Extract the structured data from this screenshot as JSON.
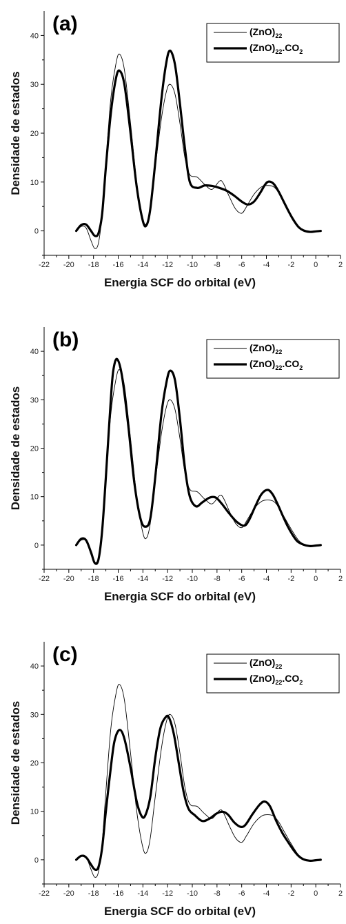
{
  "chart_data": [
    {
      "type": "line",
      "panel_label": "(a)",
      "xlabel": "Energia SCF do orbital (eV)",
      "ylabel": "Densidade de estados",
      "xlim": [
        -22,
        2
      ],
      "ylim": [
        -5,
        45
      ],
      "xticks": [
        -22,
        -20,
        -18,
        -16,
        -14,
        -12,
        -10,
        -8,
        -6,
        -4,
        -2,
        0,
        2
      ],
      "yticks": [
        0,
        10,
        20,
        30,
        40
      ],
      "legend": {
        "position": "top-right"
      },
      "series": [
        {
          "name": "(ZnO)22",
          "name_main": "(ZnO)",
          "name_sub": "22",
          "name_suffix": "",
          "style": "thin",
          "x": [
            -19.4,
            -19.0,
            -18.6,
            -18.2,
            -17.9,
            -17.6,
            -17.3,
            -17.0,
            -16.6,
            -16.2,
            -15.9,
            -15.5,
            -15.0,
            -14.5,
            -14.0,
            -13.7,
            -13.4,
            -13.0,
            -12.5,
            -12.1,
            -11.8,
            -11.4,
            -11.0,
            -10.6,
            -10.2,
            -9.6,
            -9.0,
            -8.4,
            -7.8,
            -7.5,
            -7.0,
            -6.5,
            -6.0,
            -5.6,
            -5.0,
            -4.4,
            -3.9,
            -3.4,
            -3.0,
            -2.6,
            -2.2,
            -1.8,
            -1.4,
            -1.0,
            -0.5,
            0.0,
            0.4
          ],
          "y": [
            0,
            0.9,
            0.6,
            -2.0,
            -3.6,
            -2.5,
            3.5,
            14,
            27,
            34,
            36.2,
            33,
            22,
            10,
            2.5,
            1.5,
            4.5,
            13,
            23,
            28.5,
            30,
            28,
            22,
            15,
            11.5,
            11,
            9.5,
            8.5,
            10.2,
            9.8,
            7,
            4.5,
            3.6,
            5.0,
            7.5,
            9.0,
            9.3,
            9.0,
            7.8,
            6.0,
            4.2,
            2.5,
            1.0,
            0.2,
            -0.2,
            -0.1,
            0
          ]
        },
        {
          "name": "(ZnO)22.CO2",
          "name_main": "(ZnO)",
          "name_sub": "22",
          "name_suffix": ".CO",
          "name_suffix_sub": "2",
          "style": "thick",
          "x": [
            -19.4,
            -19.0,
            -18.6,
            -18.2,
            -17.9,
            -17.6,
            -17.3,
            -17.0,
            -16.6,
            -16.2,
            -15.9,
            -15.5,
            -15.0,
            -14.5,
            -14.0,
            -13.7,
            -13.4,
            -13.0,
            -12.5,
            -12.1,
            -11.8,
            -11.4,
            -11.0,
            -10.6,
            -10.2,
            -9.6,
            -9.0,
            -8.4,
            -7.8,
            -7.2,
            -6.6,
            -6.0,
            -5.5,
            -5.0,
            -4.5,
            -4.1,
            -3.8,
            -3.4,
            -3.0,
            -2.6,
            -2.2,
            -1.8,
            -1.4,
            -1.0,
            -0.5,
            0.0,
            0.4
          ],
          "y": [
            0,
            1.2,
            1.3,
            0,
            -1.0,
            -0.5,
            3.5,
            13,
            24,
            31,
            32.8,
            30,
            20,
            9,
            2.0,
            1.2,
            4.5,
            14,
            27,
            34.5,
            36.9,
            34,
            26,
            17,
            10,
            8.8,
            9.3,
            9.2,
            8.8,
            8.2,
            7.2,
            6.0,
            5.4,
            6.0,
            7.8,
            9.5,
            10.1,
            9.6,
            8.0,
            6.0,
            4.0,
            2.2,
            0.8,
            0.1,
            -0.2,
            -0.1,
            0
          ]
        }
      ]
    },
    {
      "type": "line",
      "panel_label": "(b)",
      "xlabel": "Energia SCF do orbital (eV)",
      "ylabel": "Densidade de estados",
      "xlim": [
        -22,
        2
      ],
      "ylim": [
        -5,
        45
      ],
      "xticks": [
        -22,
        -20,
        -18,
        -16,
        -14,
        -12,
        -10,
        -8,
        -6,
        -4,
        -2,
        0,
        2
      ],
      "yticks": [
        0,
        10,
        20,
        30,
        40
      ],
      "legend": {
        "position": "top-right"
      },
      "series": [
        {
          "name": "(ZnO)22",
          "name_main": "(ZnO)",
          "name_sub": "22",
          "name_suffix": "",
          "style": "thin",
          "x": [
            -19.4,
            -19.0,
            -18.6,
            -18.2,
            -17.9,
            -17.6,
            -17.3,
            -17.0,
            -16.6,
            -16.2,
            -15.9,
            -15.5,
            -15.0,
            -14.5,
            -14.0,
            -13.7,
            -13.4,
            -13.0,
            -12.5,
            -12.1,
            -11.8,
            -11.4,
            -11.0,
            -10.6,
            -10.2,
            -9.6,
            -9.0,
            -8.4,
            -7.8,
            -7.5,
            -7.0,
            -6.5,
            -6.0,
            -5.6,
            -5.0,
            -4.4,
            -3.9,
            -3.4,
            -3.0,
            -2.6,
            -2.2,
            -1.8,
            -1.4,
            -1.0,
            -0.5,
            0.0,
            0.4
          ],
          "y": [
            0,
            1.0,
            0.8,
            -2.0,
            -3.6,
            -2.5,
            3.5,
            14,
            27,
            34,
            36.2,
            33,
            22,
            10,
            2.5,
            1.5,
            4.5,
            13,
            23,
            28.5,
            30,
            28,
            22,
            15,
            11.5,
            11,
            9.5,
            8.5,
            10.2,
            9.8,
            7,
            4.5,
            3.6,
            5.0,
            7.5,
            9.0,
            9.3,
            9.0,
            7.8,
            6.0,
            4.2,
            2.5,
            1.0,
            0.2,
            -0.2,
            -0.1,
            0
          ]
        },
        {
          "name": "(ZnO)22.CO2",
          "name_main": "(ZnO)",
          "name_sub": "22",
          "name_suffix": ".CO",
          "name_suffix_sub": "2",
          "style": "thick",
          "x": [
            -19.4,
            -19.0,
            -18.6,
            -18.2,
            -17.9,
            -17.6,
            -17.3,
            -17.0,
            -16.6,
            -16.4,
            -16.1,
            -15.7,
            -15.2,
            -14.7,
            -14.2,
            -13.8,
            -13.4,
            -13.0,
            -12.5,
            -12.1,
            -11.8,
            -11.4,
            -11.0,
            -10.6,
            -10.2,
            -9.7,
            -9.2,
            -8.6,
            -8.1,
            -7.6,
            -7.0,
            -6.4,
            -5.8,
            -5.4,
            -4.9,
            -4.4,
            -3.9,
            -3.5,
            -3.1,
            -2.7,
            -2.3,
            -1.9,
            -1.5,
            -1.0,
            -0.5,
            0.0,
            0.4
          ],
          "y": [
            0,
            1.3,
            1.0,
            -1.5,
            -3.7,
            -3.0,
            3.0,
            14,
            30,
            36,
            38.4,
            35,
            25,
            13,
            5.5,
            3.8,
            5.5,
            14,
            27,
            33.5,
            36,
            34,
            26,
            16,
            10,
            8.0,
            8.8,
            9.8,
            9.8,
            8.5,
            6.5,
            4.8,
            4.0,
            5.2,
            8.0,
            10.5,
            11.4,
            10.5,
            8.5,
            6.2,
            4.0,
            2.2,
            0.8,
            0.1,
            -0.2,
            -0.1,
            0
          ]
        }
      ]
    },
    {
      "type": "line",
      "panel_label": "(c)",
      "xlabel": "Energia SCF do orbital (eV)",
      "ylabel": "Densidade de estados",
      "xlim": [
        -22,
        2
      ],
      "ylim": [
        -5,
        45
      ],
      "xticks": [
        -22,
        -20,
        -18,
        -16,
        -14,
        -12,
        -10,
        -8,
        -6,
        -4,
        -2,
        0,
        2
      ],
      "yticks": [
        0,
        10,
        20,
        30,
        40
      ],
      "legend": {
        "position": "top-right"
      },
      "series": [
        {
          "name": "(ZnO)22",
          "name_main": "(ZnO)",
          "name_sub": "22",
          "name_suffix": "",
          "style": "thin",
          "x": [
            -19.4,
            -19.0,
            -18.6,
            -18.2,
            -17.9,
            -17.6,
            -17.3,
            -17.0,
            -16.6,
            -16.2,
            -15.9,
            -15.5,
            -15.0,
            -14.5,
            -14.0,
            -13.7,
            -13.4,
            -13.0,
            -12.5,
            -12.1,
            -11.8,
            -11.4,
            -11.0,
            -10.6,
            -10.2,
            -9.6,
            -9.0,
            -8.4,
            -7.8,
            -7.5,
            -7.0,
            -6.5,
            -6.0,
            -5.6,
            -5.0,
            -4.4,
            -3.9,
            -3.4,
            -3.0,
            -2.6,
            -2.2,
            -1.8,
            -1.4,
            -1.0,
            -0.5,
            0.0,
            0.4
          ],
          "y": [
            0,
            0.9,
            0.6,
            -2.0,
            -3.6,
            -2.5,
            3.5,
            14,
            27,
            34,
            36.2,
            33,
            22,
            10,
            2.5,
            1.5,
            4.5,
            13,
            23,
            28.5,
            30,
            28,
            22,
            15,
            11.5,
            11,
            9.5,
            8.5,
            10.2,
            9.8,
            7,
            4.5,
            3.6,
            5.0,
            7.5,
            9.0,
            9.3,
            9.0,
            7.8,
            6.0,
            4.2,
            2.5,
            1.0,
            0.2,
            -0.2,
            -0.1,
            0
          ]
        },
        {
          "name": "(ZnO)22.CO2",
          "name_main": "(ZnO)",
          "name_sub": "22",
          "name_suffix": ".CO",
          "name_suffix_sub": "2",
          "style": "thick",
          "x": [
            -19.4,
            -19.0,
            -18.6,
            -18.2,
            -17.9,
            -17.6,
            -17.3,
            -17.0,
            -16.6,
            -16.3,
            -15.9,
            -15.5,
            -15.0,
            -14.5,
            -14.1,
            -13.8,
            -13.4,
            -13.0,
            -12.6,
            -12.2,
            -11.9,
            -11.5,
            -11.1,
            -10.7,
            -10.3,
            -9.8,
            -9.2,
            -8.6,
            -8.0,
            -7.5,
            -7.1,
            -6.6,
            -6.1,
            -5.7,
            -5.1,
            -4.5,
            -4.1,
            -3.7,
            -3.2,
            -2.7,
            -2.2,
            -1.8,
            -1.4,
            -1.0,
            -0.5,
            0.0,
            0.4
          ],
          "y": [
            0,
            0.8,
            0.5,
            -1.0,
            -2.0,
            -1.5,
            2.5,
            10,
            19,
            24.5,
            26.8,
            25,
            19,
            12,
            9.0,
            9.2,
            13,
            21,
            27,
            29.3,
            29.4,
            26,
            20,
            14,
            10.5,
            9.2,
            8.0,
            8.5,
            9.6,
            9.9,
            9.3,
            7.7,
            6.8,
            7.2,
            9.5,
            11.5,
            12.0,
            11.0,
            8.0,
            5.5,
            3.5,
            2.0,
            0.8,
            0.1,
            -0.2,
            -0.1,
            0
          ]
        }
      ]
    }
  ]
}
